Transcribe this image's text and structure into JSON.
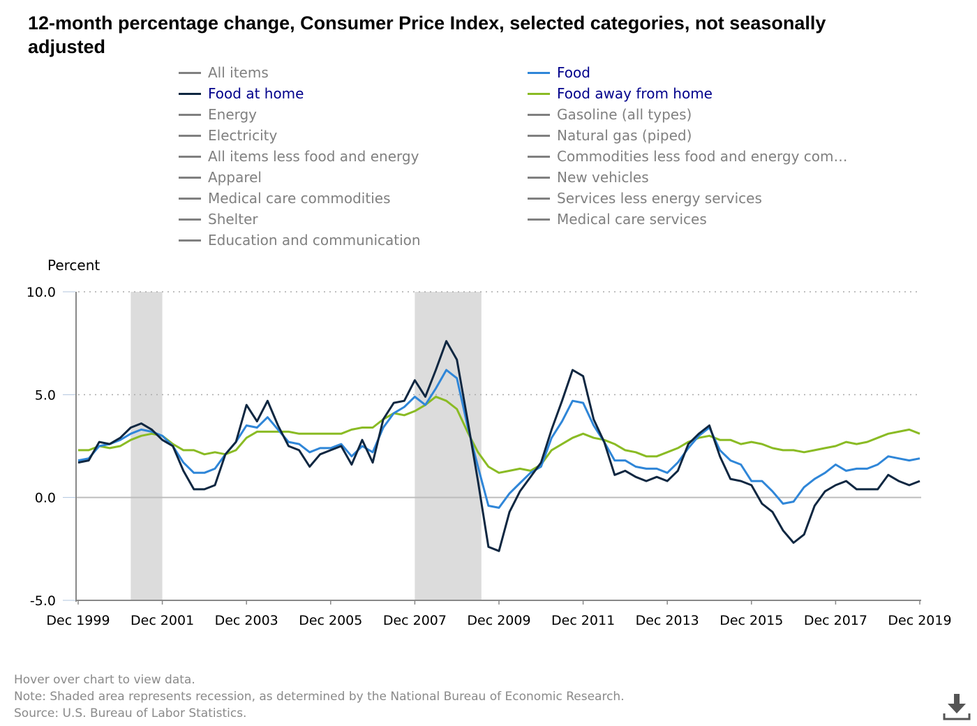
{
  "title": "12-month percentage change, Consumer Price Index, selected categories, not seasonally adjusted",
  "legend": [
    {
      "label": "All items",
      "color": "#808080",
      "active": false
    },
    {
      "label": "Food",
      "color": "#2f86d8",
      "active": true
    },
    {
      "label": "Food at home",
      "color": "#0f2741",
      "active": true
    },
    {
      "label": "Food away from home",
      "color": "#8abb24",
      "active": true
    },
    {
      "label": "Energy",
      "color": "#808080",
      "active": false
    },
    {
      "label": "Gasoline (all types)",
      "color": "#808080",
      "active": false
    },
    {
      "label": "Electricity",
      "color": "#808080",
      "active": false
    },
    {
      "label": "Natural gas (piped)",
      "color": "#808080",
      "active": false
    },
    {
      "label": "All items less food and energy",
      "color": "#808080",
      "active": false
    },
    {
      "label": "Commodities less food and energy com…",
      "color": "#808080",
      "active": false
    },
    {
      "label": "Apparel",
      "color": "#808080",
      "active": false
    },
    {
      "label": "New vehicles",
      "color": "#808080",
      "active": false
    },
    {
      "label": "Medical care commodities",
      "color": "#808080",
      "active": false
    },
    {
      "label": "Services less energy services",
      "color": "#808080",
      "active": false
    },
    {
      "label": "Shelter",
      "color": "#808080",
      "active": false
    },
    {
      "label": "Medical care services",
      "color": "#808080",
      "active": false
    },
    {
      "label": "Education and communication",
      "color": "#808080",
      "active": false
    }
  ],
  "chart_data": {
    "type": "line",
    "ylabel": "Percent",
    "ylim": [
      -5,
      10
    ],
    "yticks": [
      "10.0",
      "5.0",
      "0.0",
      "-5.0"
    ],
    "xlim": [
      "1999-12",
      "2019-12"
    ],
    "xticks": [
      "Dec 1999",
      "Dec 2001",
      "Dec 2003",
      "Dec 2005",
      "Dec 2007",
      "Dec 2009",
      "Dec 2011",
      "Dec 2013",
      "Dec 2015",
      "Dec 2017",
      "Dec 2019"
    ],
    "grid": "horizontal dotted",
    "recessions": [
      [
        "2001-03",
        "2001-11"
      ],
      [
        "2007-12",
        "2009-06"
      ]
    ],
    "x": [
      "1999-12",
      "2000-03",
      "2000-06",
      "2000-09",
      "2000-12",
      "2001-03",
      "2001-06",
      "2001-09",
      "2001-12",
      "2002-03",
      "2002-06",
      "2002-09",
      "2002-12",
      "2003-03",
      "2003-06",
      "2003-09",
      "2003-12",
      "2004-03",
      "2004-06",
      "2004-09",
      "2004-12",
      "2005-03",
      "2005-06",
      "2005-09",
      "2005-12",
      "2006-03",
      "2006-06",
      "2006-09",
      "2006-12",
      "2007-03",
      "2007-06",
      "2007-09",
      "2007-12",
      "2008-03",
      "2008-06",
      "2008-09",
      "2008-12",
      "2009-03",
      "2009-06",
      "2009-09",
      "2009-12",
      "2010-03",
      "2010-06",
      "2010-09",
      "2010-12",
      "2011-03",
      "2011-06",
      "2011-09",
      "2011-12",
      "2012-03",
      "2012-06",
      "2012-09",
      "2012-12",
      "2013-03",
      "2013-06",
      "2013-09",
      "2013-12",
      "2014-03",
      "2014-06",
      "2014-09",
      "2014-12",
      "2015-03",
      "2015-06",
      "2015-09",
      "2015-12",
      "2016-03",
      "2016-06",
      "2016-09",
      "2016-12",
      "2017-03",
      "2017-06",
      "2017-09",
      "2017-12",
      "2018-03",
      "2018-06",
      "2018-09",
      "2018-12",
      "2019-03",
      "2019-06",
      "2019-09",
      "2019-12"
    ],
    "series": [
      {
        "name": "Food away from home",
        "color": "#8abb24",
        "values": [
          2.3,
          2.3,
          2.5,
          2.4,
          2.5,
          2.8,
          3.0,
          3.1,
          3.0,
          2.6,
          2.3,
          2.3,
          2.1,
          2.2,
          2.1,
          2.3,
          2.9,
          3.2,
          3.2,
          3.2,
          3.2,
          3.1,
          3.1,
          3.1,
          3.1,
          3.1,
          3.3,
          3.4,
          3.4,
          3.8,
          4.1,
          4.0,
          4.2,
          4.5,
          4.9,
          4.7,
          4.3,
          3.2,
          2.2,
          1.5,
          1.2,
          1.3,
          1.4,
          1.3,
          1.6,
          2.3,
          2.6,
          2.9,
          3.1,
          2.9,
          2.8,
          2.6,
          2.3,
          2.2,
          2.0,
          2.0,
          2.2,
          2.4,
          2.7,
          2.9,
          3.0,
          2.8,
          2.8,
          2.6,
          2.7,
          2.6,
          2.4,
          2.3,
          2.3,
          2.2,
          2.3,
          2.4,
          2.5,
          2.7,
          2.6,
          2.7,
          2.9,
          3.1,
          3.2,
          3.3,
          3.1
        ]
      },
      {
        "name": "Food",
        "color": "#2f86d8",
        "values": [
          1.8,
          1.9,
          2.5,
          2.6,
          2.8,
          3.1,
          3.3,
          3.2,
          3.0,
          2.5,
          1.7,
          1.2,
          1.2,
          1.4,
          2.1,
          2.7,
          3.5,
          3.4,
          3.9,
          3.3,
          2.7,
          2.6,
          2.2,
          2.4,
          2.4,
          2.6,
          2.0,
          2.5,
          2.2,
          3.4,
          4.1,
          4.4,
          4.9,
          4.5,
          5.3,
          6.2,
          5.8,
          3.5,
          1.5,
          -0.4,
          -0.5,
          0.2,
          0.7,
          1.2,
          1.5,
          2.9,
          3.7,
          4.7,
          4.6,
          3.5,
          2.7,
          1.8,
          1.8,
          1.5,
          1.4,
          1.4,
          1.2,
          1.7,
          2.4,
          3.0,
          3.4,
          2.3,
          1.8,
          1.6,
          0.8,
          0.8,
          0.3,
          -0.3,
          -0.2,
          0.5,
          0.9,
          1.2,
          1.6,
          1.3,
          1.4,
          1.4,
          1.6,
          2.0,
          1.9,
          1.8,
          1.9
        ]
      },
      {
        "name": "Food at home",
        "color": "#0f2741",
        "values": [
          1.7,
          1.8,
          2.7,
          2.6,
          2.9,
          3.4,
          3.6,
          3.3,
          2.8,
          2.5,
          1.3,
          0.4,
          0.4,
          0.6,
          2.1,
          2.7,
          4.5,
          3.7,
          4.7,
          3.5,
          2.5,
          2.3,
          1.5,
          2.1,
          2.3,
          2.5,
          1.6,
          2.8,
          1.7,
          3.8,
          4.6,
          4.7,
          5.7,
          4.9,
          6.2,
          7.6,
          6.7,
          3.8,
          0.8,
          -2.4,
          -2.6,
          -0.7,
          0.3,
          1.0,
          1.7,
          3.3,
          4.7,
          6.2,
          5.9,
          3.8,
          2.7,
          1.1,
          1.3,
          1.0,
          0.8,
          1.0,
          0.8,
          1.3,
          2.6,
          3.1,
          3.5,
          2.0,
          0.9,
          0.8,
          0.6,
          -0.3,
          -0.7,
          -1.6,
          -2.2,
          -1.8,
          -0.4,
          0.3,
          0.6,
          0.8,
          0.4,
          0.4,
          0.4,
          1.1,
          0.8,
          0.6,
          0.8
        ]
      }
    ]
  },
  "notes": [
    "Hover over chart to view data.",
    "Note: Shaded area represents recession, as determined by the National Bureau of Economic Research.",
    "Source: U.S. Bureau of Labor Statistics."
  ],
  "icons": {
    "download": "download-icon"
  }
}
